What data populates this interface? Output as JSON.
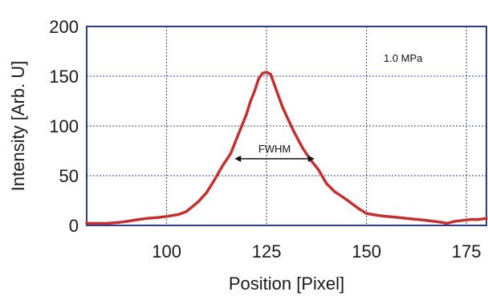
{
  "chart_data": {
    "type": "line",
    "xlabel": "Position [Pixel]",
    "ylabel": "Intensity [Arb. U]",
    "xlim": [
      80,
      180
    ],
    "ylim": [
      0,
      200
    ],
    "x_ticks": [
      100,
      125,
      150,
      175
    ],
    "y_ticks": [
      0,
      50,
      100,
      150,
      200
    ],
    "grid": true,
    "colors": {
      "line": "#c4302f",
      "frame": "#2f3d8f",
      "grid": "#2f3d8f",
      "arrow": "#111111"
    },
    "annotations": {
      "pressure": "1.0 MPa",
      "fwhm": "FWHM"
    },
    "fwhm": {
      "x_start": 117,
      "x_end": 137,
      "y": 67
    },
    "series": [
      {
        "x": [
          80,
          85,
          88,
          90,
          93,
          95,
          98,
          100,
          103,
          105,
          108,
          110,
          112,
          114,
          116,
          118,
          120,
          121,
          122,
          123,
          124,
          125,
          126,
          127,
          128,
          129,
          130,
          132,
          134,
          136,
          138,
          140,
          142,
          145,
          148,
          150,
          153,
          155,
          158,
          160,
          163,
          165,
          167,
          169,
          170,
          171,
          172,
          174,
          176,
          178,
          180
        ],
        "y": [
          2,
          2,
          3,
          4,
          6,
          7,
          8,
          9,
          11,
          14,
          24,
          33,
          46,
          60,
          72,
          92,
          112,
          125,
          135,
          147,
          153,
          154,
          152,
          141,
          130,
          119,
          110,
          93,
          78,
          66,
          56,
          42,
          34,
          26,
          17,
          12,
          10,
          9,
          8,
          7,
          6,
          5,
          4,
          3,
          2,
          3,
          4,
          5,
          6,
          6,
          7
        ]
      }
    ]
  }
}
